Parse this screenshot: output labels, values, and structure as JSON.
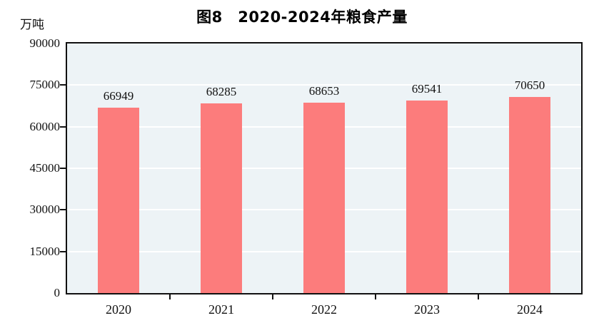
{
  "chart_data": {
    "type": "bar",
    "title": "图8　2020-2024年粮食产量",
    "categories": [
      "2020",
      "2021",
      "2022",
      "2023",
      "2024"
    ],
    "values": [
      66949,
      68285,
      68653,
      69541,
      70650
    ],
    "data_labels": [
      "66949",
      "68285",
      "68653",
      "69541",
      "70650"
    ],
    "xlabel": "",
    "ylabel": "万吨",
    "ylim": [
      0,
      90000
    ],
    "ytick_interval": 15000,
    "ytick_labels": [
      "0",
      "15000",
      "30000",
      "45000",
      "60000",
      "75000",
      "90000"
    ],
    "grid": "horizontal",
    "legend": "none"
  },
  "colors": {
    "bar": "#FC7C7C",
    "plot_background": "#EDF3F6",
    "gridline": "#FFFFFF",
    "axis": "#111111",
    "text": "#111111",
    "page_background": "#FFFFFF"
  }
}
